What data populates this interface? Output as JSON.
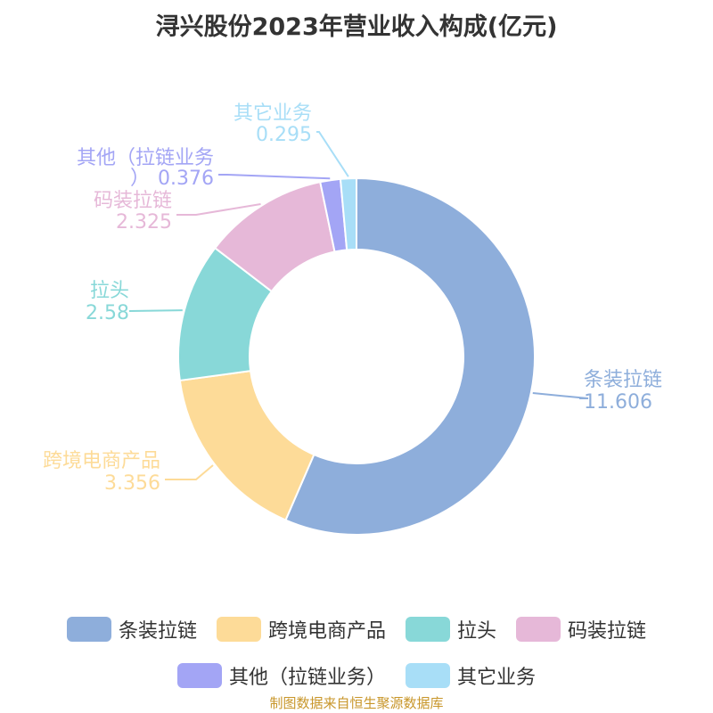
{
  "title": "浔兴股份2023年营业收入构成(亿元)",
  "source": "制图数据来自恒生聚源数据库",
  "chart_data": {
    "type": "pie",
    "variant": "donut",
    "title": "浔兴股份2023年营业收入构成(亿元)",
    "series": [
      {
        "name": "条装拉链",
        "value": 11.606,
        "value_label": "11.606",
        "color": "#8eaedb"
      },
      {
        "name": "跨境电商产品",
        "value": 3.356,
        "value_label": "3.356",
        "color": "#fddb98"
      },
      {
        "name": "拉头",
        "value": 2.58,
        "value_label": "2.58",
        "color": "#88d8d8"
      },
      {
        "name": "码装拉链",
        "value": 2.325,
        "value_label": "2.325",
        "color": "#e6b8d8"
      },
      {
        "name": "其他（拉链业务）",
        "label_line1": "其他（拉链业务",
        "label_line2": "）",
        "value": 0.376,
        "value_label": "0.376",
        "color": "#a3a5f5"
      },
      {
        "name": "其它业务",
        "value": 0.295,
        "value_label": "0.295",
        "color": "#a8def7"
      }
    ],
    "legend_position": "bottom"
  }
}
